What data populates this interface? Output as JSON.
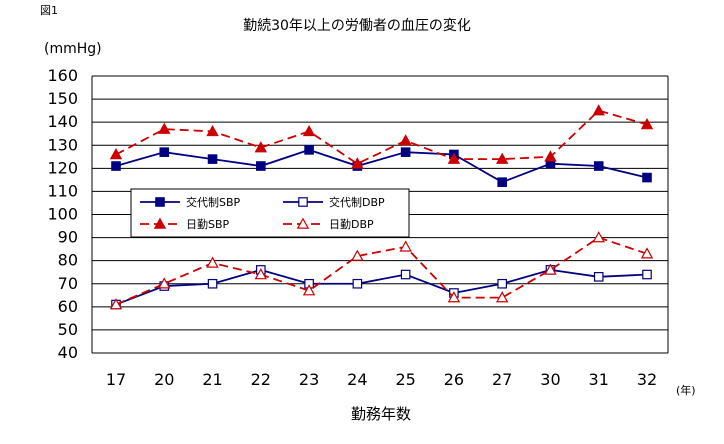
{
  "figure_label": "図1",
  "chart_data": {
    "type": "line",
    "title": "勤続30年以上の労働者の血圧の変化",
    "ylabel": "(mmHg)",
    "xlabel": "勤務年数",
    "x_unit": "(年)",
    "categories": [
      "17",
      "20",
      "21",
      "22",
      "23",
      "24",
      "25",
      "26",
      "27",
      "30",
      "31",
      "32"
    ],
    "ylim": [
      40,
      160
    ],
    "yticks": [
      40,
      50,
      60,
      70,
      80,
      90,
      100,
      110,
      120,
      130,
      140,
      150,
      160
    ],
    "grid": true,
    "legend_position": "center-left",
    "series": [
      {
        "name": "交代制SBP",
        "color": "#000080",
        "dash": "solid",
        "marker": "square-filled",
        "values": [
          121,
          127,
          124,
          121,
          128,
          121,
          127,
          126,
          114,
          122,
          121,
          116
        ]
      },
      {
        "name": "交代制DBP",
        "color": "#000080",
        "dash": "solid",
        "marker": "square-open",
        "values": [
          61,
          69,
          70,
          76,
          70,
          70,
          74,
          66,
          70,
          76,
          73,
          74
        ]
      },
      {
        "name": "日勤SBP",
        "color": "#cc0000",
        "dash": "dashed",
        "marker": "triangle-filled",
        "values": [
          126,
          137,
          136,
          129,
          136,
          122,
          132,
          124,
          124,
          125,
          145,
          139
        ]
      },
      {
        "name": "日勤DBP",
        "color": "#cc0000",
        "dash": "dashed",
        "marker": "triangle-open",
        "values": [
          61,
          70,
          79,
          74,
          67,
          82,
          86,
          64,
          64,
          76,
          90,
          83
        ]
      }
    ]
  }
}
